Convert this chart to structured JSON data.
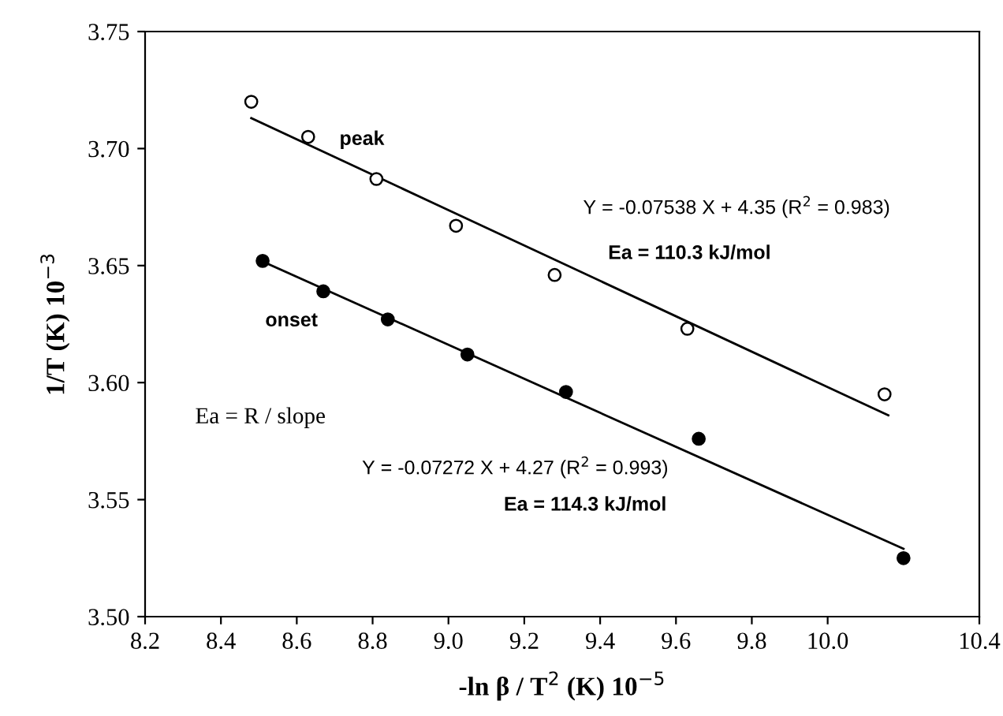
{
  "chart_data": {
    "type": "scatter",
    "xlabel": "-ln β / T$^{2}$ (K) 10$^{−5}$",
    "ylabel": "1/T (K) 10$^{−3}$",
    "xlim": [
      8.2,
      10.4
    ],
    "xticks": [
      8.2,
      8.4,
      8.6,
      8.8,
      {
        "value": 9.0,
        "label": "9.0"
      },
      9.2,
      9.4,
      9.6,
      9.8,
      {
        "value": 10.0,
        "label": "10.0"
      },
      10.4
    ],
    "ylim": [
      3.5,
      3.75
    ],
    "yticks": [
      {
        "value": 3.5,
        "label": "3.50"
      },
      3.55,
      {
        "value": 3.6,
        "label": "3.60"
      },
      3.65,
      {
        "value": 3.7,
        "label": "3.70"
      },
      3.75
    ],
    "grid": false,
    "legend": false,
    "series": [
      {
        "marker": "circle",
        "color": "#ffffff",
        "x": [
          8.48,
          8.63,
          8.81,
          9.02,
          9.28,
          9.63,
          10.15
        ],
        "values": [
          3.72,
          3.705,
          3.687,
          3.667,
          3.646,
          3.623,
          3.595
        ]
      },
      {
        "marker": "circle",
        "color": "#000000",
        "x": [
          8.51,
          8.67,
          8.84,
          9.05,
          9.31,
          9.66,
          10.2
        ],
        "values": [
          3.652,
          3.639,
          3.627,
          3.612,
          3.596,
          3.576,
          3.525
        ]
      },
      {
        "type": "line",
        "marker": "none",
        "line_style": "solid",
        "color": "#000000",
        "x": [
          8.48,
          10.16
        ],
        "values": [
          3.713,
          3.586
        ]
      },
      {
        "type": "line",
        "marker": "none",
        "line_style": "solid",
        "color": "#000000",
        "x": [
          8.52,
          10.2
        ],
        "values": [
          3.651,
          3.529
        ]
      }
    ],
    "annotations": [
      "peak",
      "onset",
      "Y = -0.07538 X + 4.35 (R$^{2}$ = 0.983)",
      "Ea = 110.3 kJ/mol",
      "Y = -0.07272 X + 4.27 (R$^{2}$ = 0.993)",
      "Ea = 114.3 kJ/mol",
      "Ea = R / slope"
    ]
  }
}
